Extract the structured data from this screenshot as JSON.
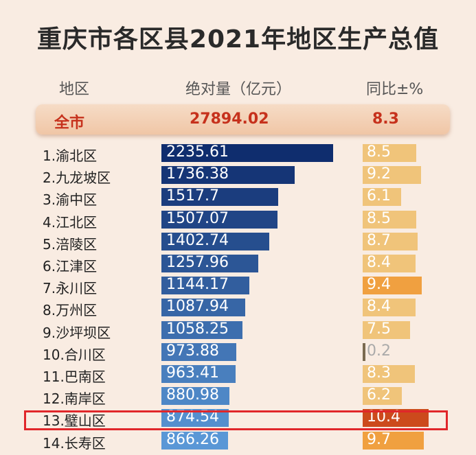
{
  "title": "重庆市各区县2021年地区生产总值",
  "headers": {
    "region": "地区",
    "value": "绝对量（亿元）",
    "growth": "同比±%"
  },
  "total": {
    "label": "全市",
    "value": "27894.02",
    "growth": "8.3"
  },
  "chart_data": {
    "type": "bar",
    "title": "重庆市各区县2021年地区生产总值",
    "categories": [
      "1.渝北区",
      "2.九龙坡区",
      "3.渝中区",
      "4.江北区",
      "5.涪陵区",
      "6.江津区",
      "7.永川区",
      "8.万州区",
      "9.沙坪坝区",
      "10.合川区",
      "11.巴南区",
      "12.南岸区",
      "13.璧山区",
      "14.长寿区"
    ],
    "series": [
      {
        "name": "绝对量（亿元）",
        "values": [
          2235.61,
          1736.38,
          1517.7,
          1507.07,
          1402.74,
          1257.96,
          1144.17,
          1087.94,
          1058.25,
          973.88,
          963.41,
          880.98,
          874.54,
          866.26
        ]
      },
      {
        "name": "同比±%",
        "values": [
          8.5,
          9.2,
          6.1,
          8.5,
          8.7,
          8.4,
          9.4,
          8.4,
          7.5,
          0.2,
          8.3,
          6.2,
          10.4,
          9.7
        ]
      }
    ],
    "value_labels": [
      "2235.61",
      "1736.38",
      "1517.7",
      "1507.07",
      "1402.74",
      "1257.96",
      "1144.17",
      "1087.94",
      "1058.25",
      "973.88",
      "963.41",
      "880.98",
      "874.54",
      "866.26"
    ],
    "growth_labels": [
      "8.5",
      "9.2",
      "6.1",
      "8.5",
      "8.7",
      "8.4",
      "9.4",
      "8.4",
      "7.5",
      "0.2",
      "8.3",
      "6.2",
      "10.4",
      "9.7"
    ],
    "highlighted_category": "13.璧山区",
    "colors": {
      "value_bar_dark": "#0f2d6e",
      "value_bar_light": "#5a97d6",
      "growth_bar": "#f0c47a",
      "growth_bar_high": "#f0a040",
      "growth_bar_low": "#7a6a50",
      "growth_bar_highlight": "#cc4a1c",
      "highlight_box": "#e0262a",
      "total_text": "#c6311c"
    }
  }
}
